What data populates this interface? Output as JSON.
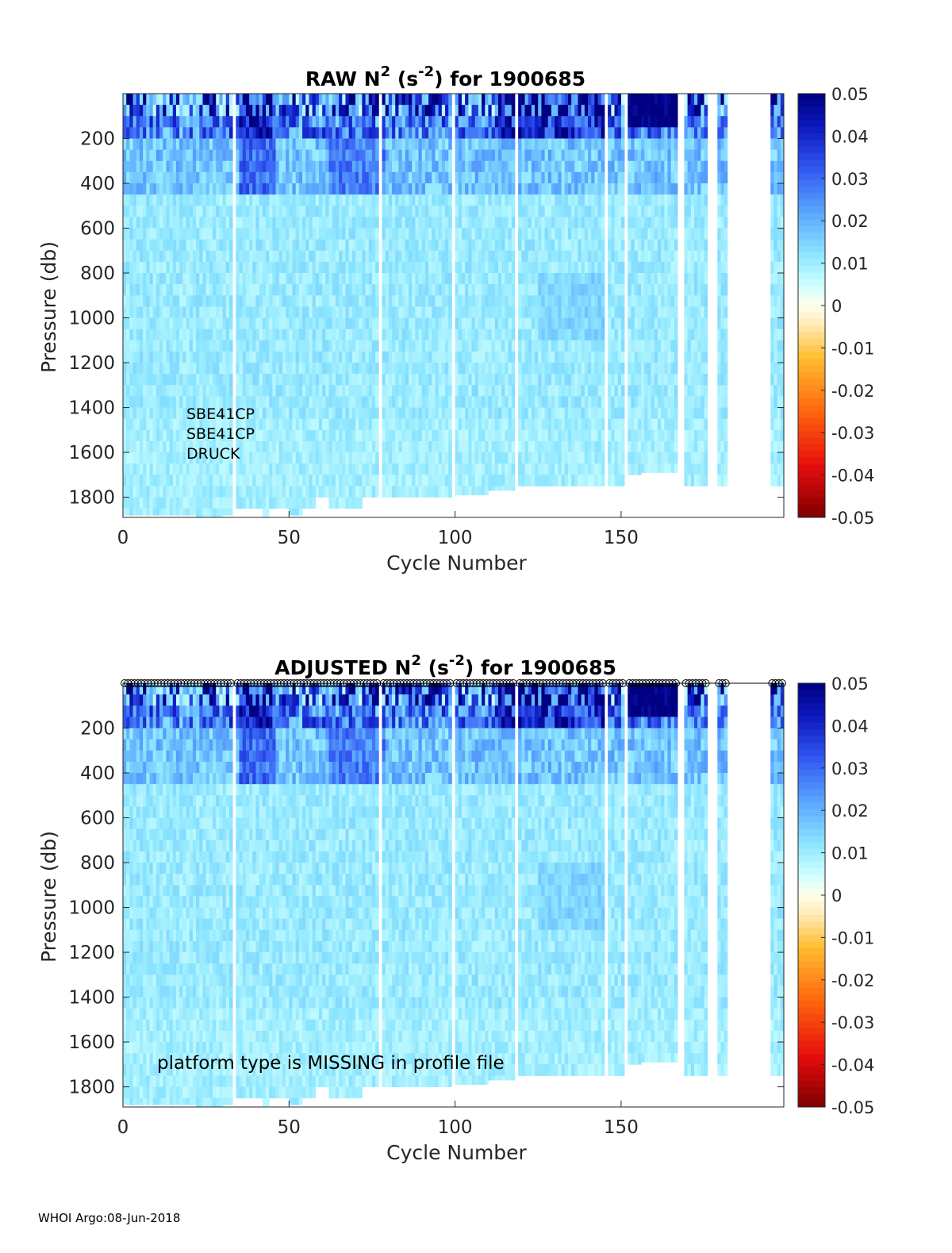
{
  "footer": "WHOI Argo:08-Jun-2018",
  "chart_data": [
    {
      "type": "heatmap",
      "title": {
        "prefix": "RAW N",
        "sup1": "2",
        "mid": " (s",
        "sup2": "-2",
        "suffix": ") for 1900685"
      },
      "xlabel": "Cycle Number",
      "ylabel": "Pressure (db)",
      "xlim": [
        0,
        199
      ],
      "ylim": [
        1890,
        0
      ],
      "xticks": [
        0,
        50,
        100,
        150
      ],
      "yticks": [
        200,
        400,
        600,
        800,
        1000,
        1200,
        1400,
        1600,
        1800
      ],
      "colorbar": {
        "min": -0.05,
        "max": 0.05,
        "ticks": [
          "0.05",
          "0.04",
          "0.03",
          "0.02",
          "0.01",
          "0",
          "-0.01",
          "-0.02",
          "-0.03",
          "-0.04",
          "-0.05"
        ]
      },
      "annotation_lines": [
        "SBE41CP",
        "SBE41CP",
        "DRUCK"
      ],
      "cycle_markers": false
    },
    {
      "type": "heatmap",
      "title": {
        "prefix": "ADJUSTED N",
        "sup1": "2",
        "mid": " (s",
        "sup2": "-2",
        "suffix": ") for 1900685"
      },
      "xlabel": "Cycle Number",
      "ylabel": "Pressure (db)",
      "xlim": [
        0,
        199
      ],
      "ylim": [
        1890,
        0
      ],
      "xticks": [
        0,
        50,
        100,
        150
      ],
      "yticks": [
        200,
        400,
        600,
        800,
        1000,
        1200,
        1400,
        1600,
        1800
      ],
      "colorbar": {
        "min": -0.05,
        "max": 0.05,
        "ticks": [
          "0.05",
          "0.04",
          "0.03",
          "0.02",
          "0.01",
          "0",
          "-0.01",
          "-0.02",
          "-0.03",
          "-0.04",
          "-0.05"
        ]
      },
      "annotation_lines": [
        "platform type is MISSING in profile file"
      ],
      "cycle_markers": true
    }
  ],
  "profiles": {
    "missing_cycles": [
      33,
      77,
      99,
      118,
      145,
      151,
      167,
      168,
      176,
      177,
      178,
      182,
      183,
      184,
      185,
      186,
      187,
      188,
      189,
      190,
      191,
      192,
      193,
      194
    ],
    "max_pressure_ranges": [
      [
        0,
        21,
        1880
      ],
      [
        22,
        29,
        1890
      ],
      [
        30,
        32,
        1880
      ],
      [
        34,
        41,
        1850
      ],
      [
        42,
        43,
        1890
      ],
      [
        44,
        49,
        1850
      ],
      [
        50,
        53,
        1880
      ],
      [
        54,
        57,
        1850
      ],
      [
        58,
        61,
        1800
      ],
      [
        62,
        71,
        1850
      ],
      [
        72,
        76,
        1800
      ],
      [
        78,
        98,
        1800
      ],
      [
        100,
        109,
        1790
      ],
      [
        110,
        117,
        1770
      ],
      [
        119,
        144,
        1750
      ],
      [
        146,
        150,
        1750
      ],
      [
        152,
        155,
        1700
      ],
      [
        156,
        166,
        1690
      ],
      [
        169,
        175,
        1750
      ],
      [
        179,
        181,
        1750
      ],
      [
        195,
        198,
        1750
      ]
    ]
  }
}
